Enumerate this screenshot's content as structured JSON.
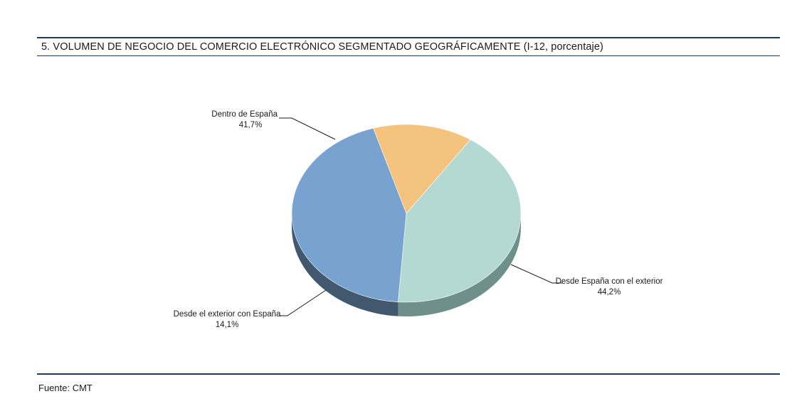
{
  "header": {
    "title": "5. VOLUMEN DE NEGOCIO DEL COMERCIO ELECTRÓNICO SEGMENTADO GEOGRÁFICAMENTE (I-12, porcentaje)"
  },
  "footer": {
    "source": "Fuente: CMT"
  },
  "chart_data": {
    "type": "pie",
    "title": "5. VOLUMEN DE NEGOCIO DEL COMERCIO ELECTRÓNICO SEGMENTADO GEOGRÁFICAMENTE (I-12, porcentaje)",
    "style": "3d",
    "legend": "none",
    "slices": [
      {
        "label": "Dentro de España",
        "value": 41.7,
        "value_label": "41,7%",
        "color": "#b4d9d2",
        "side_color": "#6f8f8a"
      },
      {
        "label": "Desde España con el exterior",
        "value": 44.2,
        "value_label": "44,2%",
        "color": "#78a3d0",
        "side_color": "#42586e"
      },
      {
        "label": "Desde el exterior con España",
        "value": 14.1,
        "value_label": "14,1%",
        "color": "#f4c37e",
        "side_color": "#8a6b44"
      }
    ]
  }
}
